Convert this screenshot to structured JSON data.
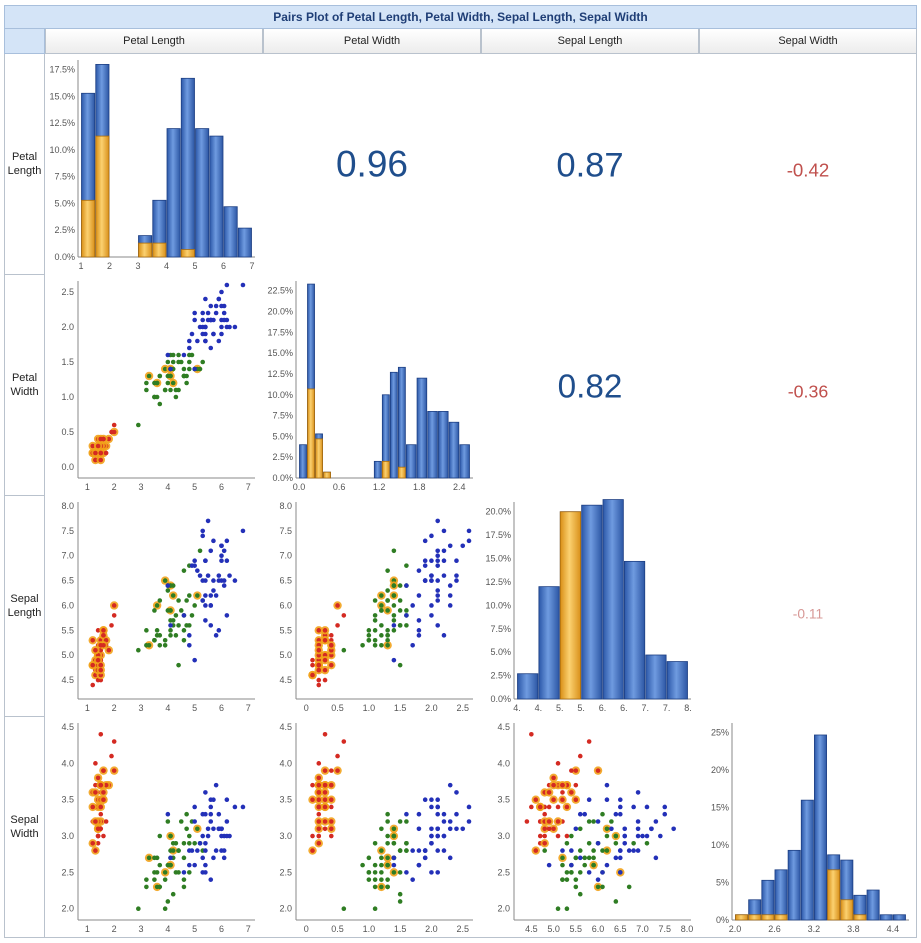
{
  "title": "Pairs Plot of Petal Length, Petal Width, Sepal Length, Sepal Width",
  "variables": [
    "Petal Length",
    "Petal Width",
    "Sepal Length",
    "Sepal Width"
  ],
  "row_labels": [
    [
      "Petal",
      "Length"
    ],
    [
      "Petal",
      "Width"
    ],
    [
      "Sepal",
      "Length"
    ],
    [
      "Sepal",
      "Width"
    ]
  ],
  "colors": {
    "setosa": "#d42a22",
    "versicolor": "#2f7d23",
    "virginica": "#2330b8",
    "highlight": "#f2a21b",
    "bar_blue": "#3d6ec5",
    "bar_orange": "#f0a928",
    "corr_pos": "#1f4e8c",
    "corr_neg": "#c0504d",
    "corr_weak": "#d79896"
  },
  "chart_data": {
    "type": "scatter",
    "title": "Pairs Plot of Petal Length, Petal Width, Sepal Length, Sepal Width",
    "correlations": [
      {
        "row": 0,
        "col": 1,
        "label": "0.96"
      },
      {
        "row": 0,
        "col": 2,
        "label": "0.87"
      },
      {
        "row": 0,
        "col": 3,
        "label": "-0.42"
      },
      {
        "row": 1,
        "col": 2,
        "label": "0.82"
      },
      {
        "row": 1,
        "col": 3,
        "label": "-0.36"
      },
      {
        "row": 2,
        "col": 3,
        "label": "-0.11"
      }
    ],
    "axes": {
      "petal_length": {
        "range": [
          1,
          7
        ],
        "ticks": [
          "1",
          "2",
          "3",
          "4",
          "5",
          "6",
          "7"
        ]
      },
      "petal_width": {
        "range": [
          0,
          2.6
        ],
        "ticks_scatter": [
          "0",
          "0.5",
          "1.0",
          "1.5",
          "2.0",
          "2.5"
        ],
        "ticks_hist": [
          "0.0",
          "0.6",
          "1.2",
          "1.8",
          "2.4"
        ]
      },
      "sepal_length": {
        "range": [
          4,
          8
        ],
        "ticks_y": [
          "4.5",
          "5.0",
          "5.5",
          "6.0",
          "6.5",
          "7.0",
          "7.5",
          "8.0"
        ],
        "ticks_x": [
          "4.5",
          "5.0",
          "5.5",
          "6.0",
          "6.5",
          "7.0",
          "7.5",
          "8.0"
        ],
        "ticks_hist": [
          "4.",
          "4.",
          "5.",
          "5.",
          "6.",
          "6.",
          "7.",
          "7.",
          "8."
        ]
      },
      "sepal_width": {
        "range": [
          1.9,
          4.5
        ],
        "ticks_y": [
          "2.0",
          "2.5",
          "3.0",
          "3.5",
          "4.0",
          "4.5"
        ],
        "ticks_hist": [
          "2.0",
          "2.6",
          "3.2",
          "3.8",
          "4.4"
        ]
      }
    },
    "histograms": [
      {
        "var": "Petal Length",
        "bin_edges": [
          1,
          1.5,
          2,
          3,
          3.5,
          4,
          4.5,
          5,
          5.5,
          6,
          6.5,
          7
        ],
        "total_pct": [
          15.3,
          18.0,
          0,
          2.0,
          5.3,
          12.0,
          16.7,
          12.0,
          11.3,
          4.7,
          2.7
        ],
        "highlight_pct": [
          5.3,
          11.3,
          0,
          1.3,
          1.3,
          0,
          0.7,
          0,
          0,
          0,
          0
        ],
        "yticks": [
          "0.0%",
          "2.5%",
          "5.0%",
          "7.5%",
          "10.0%",
          "12.5%",
          "15.0%",
          "17.5%"
        ]
      },
      {
        "var": "Petal Width",
        "bin_edges": [
          0,
          0.12,
          0.24,
          0.36,
          0.48,
          0.6,
          1.0,
          1.12,
          1.24,
          1.36,
          1.48,
          1.6,
          1.76,
          1.92,
          2.08,
          2.24,
          2.4,
          2.56
        ],
        "total_pct": [
          4.0,
          23.3,
          5.3,
          0.7,
          0,
          0,
          0,
          2.0,
          10.0,
          12.7,
          13.3,
          4.0,
          12.0,
          8.0,
          8.0,
          6.7,
          4.0
        ],
        "highlight_pct": [
          0,
          10.7,
          4.7,
          0.7,
          0,
          0,
          0,
          0,
          2.0,
          0,
          1.3,
          0,
          0,
          0,
          0,
          0,
          0
        ],
        "yticks": [
          "0.0%",
          "2.5%",
          "5.0%",
          "7.5%",
          "10.0%",
          "12.5%",
          "15.0%",
          "17.5%",
          "20.0%",
          "22.5%"
        ]
      },
      {
        "var": "Sepal Length",
        "bin_edges": [
          4.0,
          4.5,
          5.0,
          5.5,
          6.0,
          6.5,
          7.0,
          7.5,
          8.0
        ],
        "total_pct": [
          2.7,
          12.0,
          20.0,
          20.7,
          21.3,
          14.7,
          4.7,
          4.0
        ],
        "highlight_pct": [
          0,
          0,
          20.0,
          0,
          0,
          0,
          0,
          0
        ],
        "yticks": [
          "0.0%",
          "2.5%",
          "5.0%",
          "7.5%",
          "10.0%",
          "12.5%",
          "15.0%",
          "17.5%",
          "20.0%"
        ]
      },
      {
        "var": "Sepal Width",
        "bin_edges": [
          2.0,
          2.2,
          2.4,
          2.6,
          2.8,
          3.0,
          3.2,
          3.4,
          3.6,
          3.8,
          4.0,
          4.2,
          4.4,
          4.6
        ],
        "total_pct": [
          0.7,
          2.7,
          5.3,
          6.7,
          9.3,
          16.0,
          24.7,
          8.7,
          8.0,
          3.3,
          4.0,
          0.7,
          0.7
        ],
        "highlight_pct": [
          0.7,
          0.7,
          0.7,
          0.7,
          0,
          0,
          0,
          6.7,
          2.7,
          0.7,
          0,
          0,
          0
        ],
        "yticks": [
          "0%",
          "5%",
          "10%",
          "15%",
          "20%",
          "25%"
        ]
      }
    ]
  }
}
